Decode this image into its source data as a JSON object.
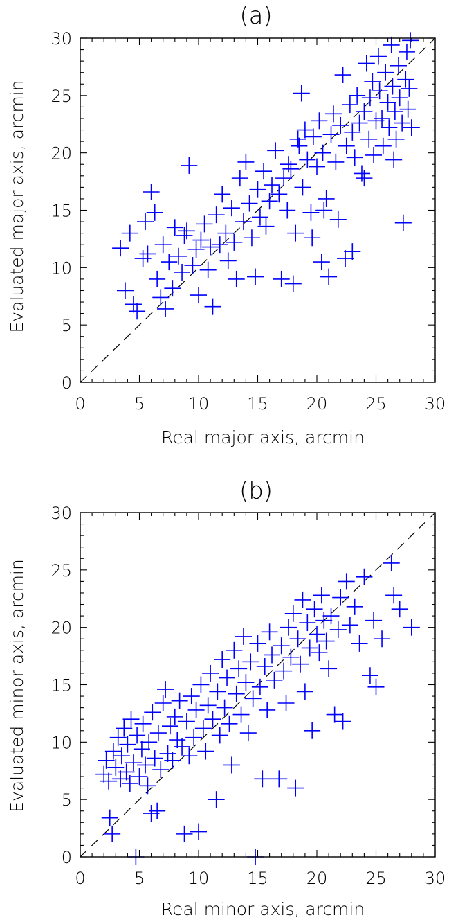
{
  "chart_data": [
    {
      "type": "scatter",
      "title": "(a)",
      "xlabel": "Real major axis, arcmin",
      "ylabel": "Evaluated major axis, arcmin",
      "xlim": [
        0,
        30
      ],
      "ylim": [
        0,
        30
      ],
      "xticks": [
        "0",
        "5",
        "10",
        "15",
        "20",
        "25",
        "30"
      ],
      "yticks": [
        "0",
        "5",
        "10",
        "15",
        "20",
        "25",
        "30"
      ],
      "reference_line": "y = x (dashed)",
      "marker": "plus",
      "color": "#0000ff",
      "points": [
        [
          3.4,
          11.7
        ],
        [
          4.2,
          13.0
        ],
        [
          3.8,
          8.0
        ],
        [
          4.5,
          6.8
        ],
        [
          4.8,
          6.2
        ],
        [
          5.3,
          10.8
        ],
        [
          5.5,
          14.0
        ],
        [
          5.7,
          11.2
        ],
        [
          6.0,
          16.6
        ],
        [
          6.3,
          14.8
        ],
        [
          6.5,
          9.0
        ],
        [
          6.8,
          7.4
        ],
        [
          7.0,
          12.0
        ],
        [
          7.2,
          6.4
        ],
        [
          7.5,
          10.5
        ],
        [
          7.8,
          8.2
        ],
        [
          8.0,
          13.5
        ],
        [
          8.3,
          11.0
        ],
        [
          8.6,
          9.6
        ],
        [
          8.8,
          12.8
        ],
        [
          9.2,
          18.9
        ],
        [
          9.0,
          13.2
        ],
        [
          9.5,
          10.2
        ],
        [
          9.8,
          11.6
        ],
        [
          10.2,
          12.4
        ],
        [
          10.0,
          7.6
        ],
        [
          10.5,
          13.8
        ],
        [
          10.8,
          9.8
        ],
        [
          11.2,
          6.6
        ],
        [
          11.0,
          11.8
        ],
        [
          11.5,
          14.6
        ],
        [
          11.8,
          12.0
        ],
        [
          12.0,
          16.4
        ],
        [
          12.3,
          13.0
        ],
        [
          12.5,
          10.6
        ],
        [
          12.8,
          15.2
        ],
        [
          13.0,
          12.2
        ],
        [
          13.2,
          9.0
        ],
        [
          13.5,
          17.8
        ],
        [
          13.8,
          14.0
        ],
        [
          14.0,
          19.2
        ],
        [
          14.3,
          15.6
        ],
        [
          14.5,
          12.6
        ],
        [
          14.8,
          9.2
        ],
        [
          15.0,
          16.8
        ],
        [
          15.2,
          14.4
        ],
        [
          15.5,
          18.4
        ],
        [
          15.7,
          13.6
        ],
        [
          16.0,
          15.8
        ],
        [
          16.2,
          17.2
        ],
        [
          16.5,
          20.2
        ],
        [
          16.8,
          16.4
        ],
        [
          17.0,
          9.0
        ],
        [
          17.2,
          17.8
        ],
        [
          17.5,
          15.0
        ],
        [
          17.8,
          18.6
        ],
        [
          18.0,
          8.6
        ],
        [
          18.2,
          13.0
        ],
        [
          18.5,
          20.6
        ],
        [
          18.7,
          25.2
        ],
        [
          18.8,
          17.0
        ],
        [
          19.0,
          22.0
        ],
        [
          19.2,
          19.4
        ],
        [
          19.5,
          14.8
        ],
        [
          19.7,
          21.4
        ],
        [
          20.0,
          18.8
        ],
        [
          20.2,
          22.8
        ],
        [
          20.4,
          10.5
        ],
        [
          20.5,
          20.0
        ],
        [
          20.8,
          16.0
        ],
        [
          21.0,
          9.2
        ],
        [
          21.2,
          21.6
        ],
        [
          21.4,
          23.4
        ],
        [
          21.6,
          19.2
        ],
        [
          21.8,
          14.2
        ],
        [
          22.0,
          22.4
        ],
        [
          22.2,
          26.8
        ],
        [
          22.4,
          10.8
        ],
        [
          22.5,
          20.6
        ],
        [
          22.8,
          24.2
        ],
        [
          23.0,
          11.4
        ],
        [
          23.0,
          21.8
        ],
        [
          23.2,
          19.6
        ],
        [
          23.4,
          25.0
        ],
        [
          23.6,
          22.6
        ],
        [
          23.8,
          18.2
        ],
        [
          24.0,
          23.6
        ],
        [
          24.2,
          27.8
        ],
        [
          24.4,
          21.2
        ],
        [
          24.5,
          24.8
        ],
        [
          24.7,
          26.2
        ],
        [
          24.8,
          19.8
        ],
        [
          25.0,
          22.8
        ],
        [
          25.2,
          28.4
        ],
        [
          25.3,
          25.4
        ],
        [
          25.5,
          23.0
        ],
        [
          25.6,
          20.6
        ],
        [
          25.8,
          27.0
        ],
        [
          26.0,
          24.4
        ],
        [
          26.1,
          22.2
        ],
        [
          26.3,
          29.4
        ],
        [
          26.4,
          25.8
        ],
        [
          26.6,
          23.6
        ],
        [
          26.7,
          21.2
        ],
        [
          26.9,
          27.6
        ],
        [
          27.0,
          24.8
        ],
        [
          27.2,
          22.6
        ],
        [
          27.3,
          13.9
        ],
        [
          27.5,
          26.4
        ],
        [
          27.6,
          28.8
        ],
        [
          27.7,
          23.8
        ],
        [
          27.8,
          25.6
        ],
        [
          27.9,
          29.8
        ],
        [
          28.0,
          22.2
        ],
        [
          26.5,
          19.4
        ],
        [
          24.0,
          17.8
        ],
        [
          19.6,
          12.6
        ],
        [
          20.6,
          15.0
        ],
        [
          18.4,
          21.2
        ],
        [
          17.6,
          19.0
        ]
      ]
    },
    {
      "type": "scatter",
      "title": "(b)",
      "xlabel": "Real minor axis, arcmin",
      "ylabel": "Evaluated minor axis, arcmin",
      "xlim": [
        0,
        30
      ],
      "ylim": [
        0,
        30
      ],
      "xticks": [
        "0",
        "5",
        "10",
        "15",
        "20",
        "25",
        "30"
      ],
      "yticks": [
        "0",
        "5",
        "10",
        "15",
        "20",
        "25",
        "30"
      ],
      "reference_line": "y = x (dashed)",
      "marker": "plus",
      "color": "#0000ff",
      "points": [
        [
          2.0,
          7.2
        ],
        [
          2.2,
          8.4
        ],
        [
          2.4,
          6.6
        ],
        [
          2.5,
          3.4
        ],
        [
          2.7,
          2.0
        ],
        [
          2.8,
          9.2
        ],
        [
          3.0,
          7.8
        ],
        [
          3.2,
          10.4
        ],
        [
          3.4,
          6.8
        ],
        [
          3.5,
          8.8
        ],
        [
          3.7,
          11.2
        ],
        [
          3.9,
          7.4
        ],
        [
          4.0,
          9.8
        ],
        [
          4.2,
          6.4
        ],
        [
          4.3,
          12.0
        ],
        [
          4.5,
          8.2
        ],
        [
          4.7,
          0.0
        ],
        [
          4.8,
          10.6
        ],
        [
          5.0,
          7.0
        ],
        [
          5.2,
          9.4
        ],
        [
          5.3,
          11.6
        ],
        [
          5.5,
          8.0
        ],
        [
          5.7,
          6.2
        ],
        [
          5.8,
          10.0
        ],
        [
          6.0,
          3.8
        ],
        [
          6.1,
          12.6
        ],
        [
          6.3,
          8.6
        ],
        [
          6.5,
          4.0
        ],
        [
          6.6,
          10.8
        ],
        [
          6.8,
          7.6
        ],
        [
          7.0,
          13.4
        ],
        [
          7.2,
          14.6
        ],
        [
          7.4,
          9.0
        ],
        [
          7.6,
          11.4
        ],
        [
          7.8,
          8.4
        ],
        [
          8.0,
          12.2
        ],
        [
          8.2,
          10.2
        ],
        [
          8.4,
          13.6
        ],
        [
          8.6,
          9.6
        ],
        [
          8.8,
          2.0
        ],
        [
          9.0,
          11.8
        ],
        [
          9.2,
          8.8
        ],
        [
          9.4,
          14.0
        ],
        [
          9.6,
          10.4
        ],
        [
          9.8,
          12.8
        ],
        [
          10.0,
          2.2
        ],
        [
          10.2,
          15.0
        ],
        [
          10.4,
          11.2
        ],
        [
          10.6,
          9.2
        ],
        [
          10.8,
          13.2
        ],
        [
          11.0,
          16.0
        ],
        [
          11.2,
          12.0
        ],
        [
          11.5,
          5.0
        ],
        [
          11.6,
          14.4
        ],
        [
          11.8,
          10.6
        ],
        [
          12.0,
          17.2
        ],
        [
          12.2,
          13.0
        ],
        [
          12.4,
          15.6
        ],
        [
          12.6,
          11.6
        ],
        [
          12.8,
          8.0
        ],
        [
          13.0,
          18.0
        ],
        [
          13.2,
          14.2
        ],
        [
          13.4,
          16.4
        ],
        [
          13.6,
          12.4
        ],
        [
          13.8,
          19.2
        ],
        [
          14.0,
          15.2
        ],
        [
          14.2,
          10.8
        ],
        [
          14.4,
          17.0
        ],
        [
          14.6,
          13.8
        ],
        [
          14.8,
          0.0
        ],
        [
          15.0,
          18.6
        ],
        [
          15.2,
          14.8
        ],
        [
          15.4,
          6.8
        ],
        [
          15.6,
          16.6
        ],
        [
          15.8,
          12.8
        ],
        [
          16.0,
          19.6
        ],
        [
          16.2,
          17.6
        ],
        [
          16.4,
          15.4
        ],
        [
          16.8,
          6.8
        ],
        [
          17.0,
          18.4
        ],
        [
          17.2,
          16.2
        ],
        [
          17.4,
          13.4
        ],
        [
          17.6,
          20.0
        ],
        [
          17.8,
          17.4
        ],
        [
          18.0,
          21.2
        ],
        [
          18.2,
          6.0
        ],
        [
          18.4,
          19.0
        ],
        [
          18.6,
          16.8
        ],
        [
          18.8,
          22.4
        ],
        [
          19.0,
          14.4
        ],
        [
          19.2,
          20.4
        ],
        [
          19.4,
          18.2
        ],
        [
          19.6,
          11.0
        ],
        [
          19.8,
          21.6
        ],
        [
          20.0,
          19.4
        ],
        [
          20.2,
          17.8
        ],
        [
          20.4,
          22.8
        ],
        [
          20.6,
          20.6
        ],
        [
          20.8,
          18.8
        ],
        [
          21.0,
          16.4
        ],
        [
          21.2,
          21.0
        ],
        [
          21.5,
          12.4
        ],
        [
          21.8,
          19.8
        ],
        [
          22.0,
          22.6
        ],
        [
          22.2,
          11.8
        ],
        [
          22.5,
          24.0
        ],
        [
          22.8,
          20.2
        ],
        [
          23.2,
          21.8
        ],
        [
          23.6,
          18.6
        ],
        [
          24.0,
          24.4
        ],
        [
          24.5,
          15.8
        ],
        [
          24.8,
          20.6
        ],
        [
          25.0,
          14.8
        ],
        [
          25.5,
          19.0
        ],
        [
          26.3,
          25.6
        ],
        [
          26.5,
          22.8
        ],
        [
          27.0,
          21.6
        ],
        [
          28.0,
          20.0
        ]
      ]
    }
  ]
}
